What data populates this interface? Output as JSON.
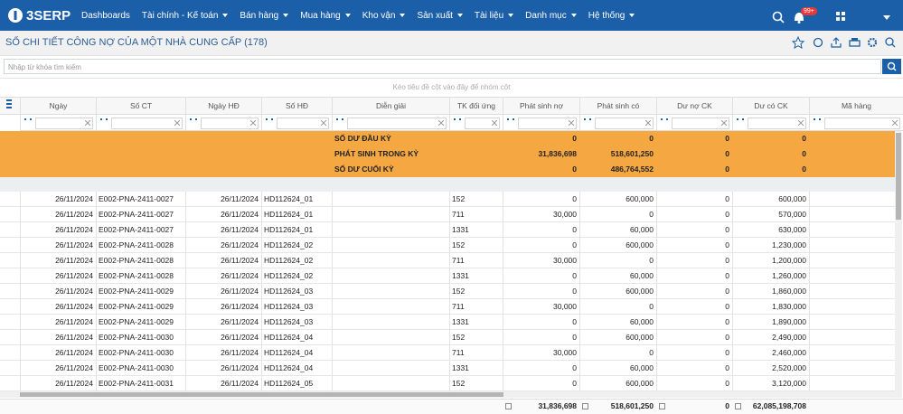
{
  "nav": {
    "logo": "3SERP",
    "items": [
      "Dashboards",
      "Tài chính - Kế toán",
      "Bán hàng",
      "Mua hàng",
      "Kho vận",
      "Sản xuất",
      "Tài liệu",
      "Danh mục",
      "Hệ thống"
    ],
    "badge": "99+"
  },
  "header": {
    "title": "SỔ CHI TIẾT CÔNG NỢ CỦA MỘT NHÀ CUNG CẤP (178)"
  },
  "search": {
    "placeholder": "Nhập từ khóa tìm kiếm"
  },
  "grid": {
    "group_hint": "Kéo tiêu đề cột vào đây để nhóm cột",
    "columns": [
      "Ngày",
      "Số CT",
      "Ngày HĐ",
      "Số HĐ",
      "Diễn giải",
      "TK đối ứng",
      "Phát sinh nợ",
      "Phát sinh có",
      "Dư nợ CK",
      "Dư có CK",
      "Mã hàng"
    ],
    "summary_rows": [
      [
        "SỐ DƯ ĐẦU KỲ",
        "0",
        "0",
        "0",
        "0"
      ],
      [
        "PHÁT SINH TRONG KỲ",
        "31,836,698",
        "518,601,250",
        "0",
        "0"
      ],
      [
        "SỐ DƯ CUỐI KỲ",
        "0",
        "486,764,552",
        "0",
        "0"
      ]
    ],
    "rows": [
      [
        "26/11/2024",
        "E002-PNA-2411-0027",
        "26/11/2024",
        "HD112624_01",
        "152",
        "0",
        "600,000",
        "0",
        "600,000"
      ],
      [
        "26/11/2024",
        "E002-PNA-2411-0027",
        "26/11/2024",
        "HD112624_01",
        "711",
        "30,000",
        "0",
        "0",
        "570,000"
      ],
      [
        "26/11/2024",
        "E002-PNA-2411-0027",
        "26/11/2024",
        "HD112624_01",
        "1331",
        "0",
        "60,000",
        "0",
        "630,000"
      ],
      [
        "26/11/2024",
        "E002-PNA-2411-0028",
        "26/11/2024",
        "HD112624_02",
        "152",
        "0",
        "600,000",
        "0",
        "1,230,000"
      ],
      [
        "26/11/2024",
        "E002-PNA-2411-0028",
        "26/11/2024",
        "HD112624_02",
        "711",
        "30,000",
        "0",
        "0",
        "1,200,000"
      ],
      [
        "26/11/2024",
        "E002-PNA-2411-0028",
        "26/11/2024",
        "HD112624_02",
        "1331",
        "0",
        "60,000",
        "0",
        "1,260,000"
      ],
      [
        "26/11/2024",
        "E002-PNA-2411-0029",
        "26/11/2024",
        "HD112624_03",
        "152",
        "0",
        "600,000",
        "0",
        "1,860,000"
      ],
      [
        "26/11/2024",
        "E002-PNA-2411-0029",
        "26/11/2024",
        "HD112624_03",
        "711",
        "30,000",
        "0",
        "0",
        "1,830,000"
      ],
      [
        "26/11/2024",
        "E002-PNA-2411-0029",
        "26/11/2024",
        "HD112624_03",
        "1331",
        "0",
        "60,000",
        "0",
        "1,890,000"
      ],
      [
        "26/11/2024",
        "E002-PNA-2411-0030",
        "26/11/2024",
        "HD112624_04",
        "152",
        "0",
        "600,000",
        "0",
        "2,490,000"
      ],
      [
        "26/11/2024",
        "E002-PNA-2411-0030",
        "26/11/2024",
        "HD112624_04",
        "711",
        "30,000",
        "0",
        "0",
        "2,460,000"
      ],
      [
        "26/11/2024",
        "E002-PNA-2411-0030",
        "26/11/2024",
        "HD112624_04",
        "1331",
        "0",
        "60,000",
        "0",
        "2,520,000"
      ],
      [
        "26/11/2024",
        "E002-PNA-2411-0031",
        "26/11/2024",
        "HD112624_05",
        "152",
        "0",
        "600,000",
        "0",
        "3,120,000"
      ]
    ],
    "totals": [
      "31,836,698",
      "518,601,250",
      "0",
      "62,085,198,708"
    ]
  }
}
